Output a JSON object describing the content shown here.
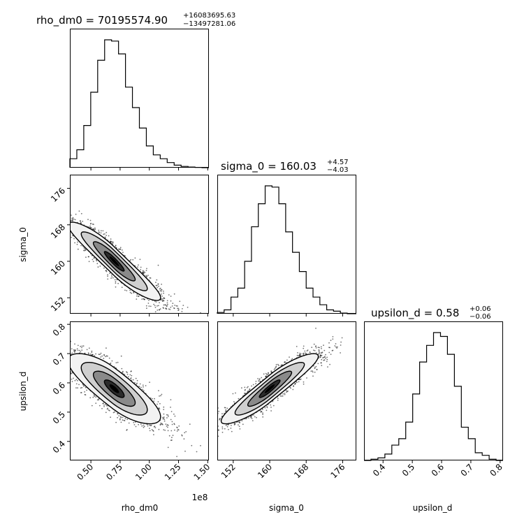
{
  "chart_data": {
    "type": "corner",
    "parameters": [
      {
        "name": "rho_dm0",
        "title": {
          "prefix": "rho_dm0 = 70195574.90",
          "plus": "+16083695.63",
          "minus": "−13497281.06"
        },
        "axis_label": "rho_dm0",
        "range": [
          32000000,
          151000000
        ],
        "ticks": [
          50000000,
          75000000,
          100000000,
          125000000,
          150000000
        ],
        "tick_labels": [
          "0.50",
          "0.75",
          "1.00",
          "1.25",
          "1.50"
        ],
        "offset_label": "1e8",
        "hist_bin_edges": [
          32000000,
          37950000,
          43900000,
          49850000,
          55800000,
          61750000,
          67700000,
          73650000,
          79600000,
          85550000,
          91500000,
          97450000,
          103400000,
          109350000,
          115300000,
          121250000,
          127200000,
          133150000,
          139100000,
          145050000,
          151000000
        ],
        "hist_counts": [
          0.07,
          0.14,
          0.33,
          0.59,
          0.84,
          1.0,
          0.99,
          0.89,
          0.63,
          0.47,
          0.31,
          0.17,
          0.1,
          0.07,
          0.04,
          0.02,
          0.01,
          0.005,
          0.002,
          0.0
        ]
      },
      {
        "name": "sigma_0",
        "title": {
          "prefix": "sigma_0 = 160.03",
          "plus": "+4.57",
          "minus": "−4.03"
        },
        "axis_label": "sigma_0",
        "range": [
          148.5,
          179.0
        ],
        "ticks": [
          152,
          160,
          168,
          176
        ],
        "tick_labels": [
          "152",
          "160",
          "168",
          "176"
        ],
        "hist_bin_edges": [
          148.5,
          150.0,
          151.5,
          153.0,
          154.5,
          156.0,
          157.5,
          159.0,
          160.5,
          162.0,
          163.5,
          165.0,
          166.5,
          168.0,
          169.5,
          171.0,
          172.5,
          174.0,
          175.5,
          177.0,
          179.0
        ],
        "hist_counts": [
          0.01,
          0.03,
          0.13,
          0.2,
          0.41,
          0.68,
          0.86,
          1.0,
          0.99,
          0.86,
          0.64,
          0.48,
          0.33,
          0.2,
          0.13,
          0.07,
          0.03,
          0.02,
          0.005,
          0.0
        ]
      },
      {
        "name": "upsilon_d",
        "title": {
          "prefix": "upsilon_d = 0.58",
          "plus": "+0.06",
          "minus": "−0.06"
        },
        "axis_label": "upsilon_d",
        "range": [
          0.335,
          0.81
        ],
        "ticks": [
          0.4,
          0.5,
          0.6,
          0.7,
          0.8
        ],
        "tick_labels": [
          "0.4",
          "0.5",
          "0.6",
          "0.7",
          "0.8"
        ],
        "hist_bin_edges": [
          0.335,
          0.3588,
          0.3825,
          0.4063,
          0.43,
          0.4538,
          0.4775,
          0.5013,
          0.525,
          0.5488,
          0.5725,
          0.5963,
          0.62,
          0.6438,
          0.6675,
          0.6913,
          0.715,
          0.7388,
          0.7625,
          0.7863,
          0.81
        ],
        "hist_counts": [
          0.0,
          0.01,
          0.02,
          0.05,
          0.12,
          0.17,
          0.3,
          0.52,
          0.77,
          0.9,
          1.0,
          0.97,
          0.83,
          0.58,
          0.26,
          0.17,
          0.06,
          0.04,
          0.01,
          0.0
        ]
      }
    ],
    "pairs": [
      {
        "x": "rho_dm0",
        "y": "sigma_0",
        "peak": [
          70000000,
          160.0
        ],
        "sigma_x": 16000000,
        "sigma_y": 4.3,
        "correlation": -0.93,
        "contour_levels_sigma": [
          0.5,
          1.0,
          1.5,
          2.0
        ]
      },
      {
        "x": "rho_dm0",
        "y": "upsilon_d",
        "peak": [
          70000000,
          0.58
        ],
        "sigma_x": 16000000,
        "sigma_y": 0.06,
        "correlation": -0.8,
        "contour_levels_sigma": [
          0.5,
          1.0,
          1.5,
          2.0
        ]
      },
      {
        "x": "sigma_0",
        "y": "upsilon_d",
        "peak": [
          160.0,
          0.58
        ],
        "sigma_x": 4.3,
        "sigma_y": 0.06,
        "correlation": 0.92,
        "contour_levels_sigma": [
          0.5,
          1.0,
          1.5,
          2.0
        ]
      }
    ],
    "grid": false,
    "legend": "none"
  }
}
